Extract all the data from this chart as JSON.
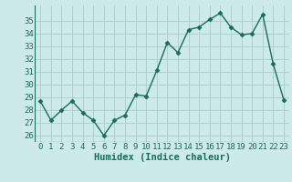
{
  "x": [
    0,
    1,
    2,
    3,
    4,
    5,
    6,
    7,
    8,
    9,
    10,
    11,
    12,
    13,
    14,
    15,
    16,
    17,
    18,
    19,
    20,
    21,
    22,
    23
  ],
  "y": [
    28.7,
    27.2,
    28.0,
    28.7,
    27.8,
    27.2,
    26.0,
    27.2,
    27.6,
    29.2,
    29.1,
    31.1,
    33.3,
    32.5,
    34.3,
    34.5,
    35.1,
    35.6,
    34.5,
    33.9,
    34.0,
    35.5,
    31.6,
    28.8
  ],
  "line_color": "#1a6b5a",
  "marker": "D",
  "markersize": 2.5,
  "linewidth": 1.0,
  "background_color": "#cceae7",
  "grid_color": "#b0d0cc",
  "xlabel": "Humidex (Indice chaleur)",
  "xlabel_fontsize": 7.5,
  "tick_fontsize": 6.5,
  "ylim": [
    25.5,
    36.2
  ],
  "xlim": [
    -0.5,
    23.5
  ],
  "yticks": [
    26,
    27,
    28,
    29,
    30,
    31,
    32,
    33,
    34,
    35
  ],
  "xticks": [
    0,
    1,
    2,
    3,
    4,
    5,
    6,
    7,
    8,
    9,
    10,
    11,
    12,
    13,
    14,
    15,
    16,
    17,
    18,
    19,
    20,
    21,
    22,
    23
  ]
}
